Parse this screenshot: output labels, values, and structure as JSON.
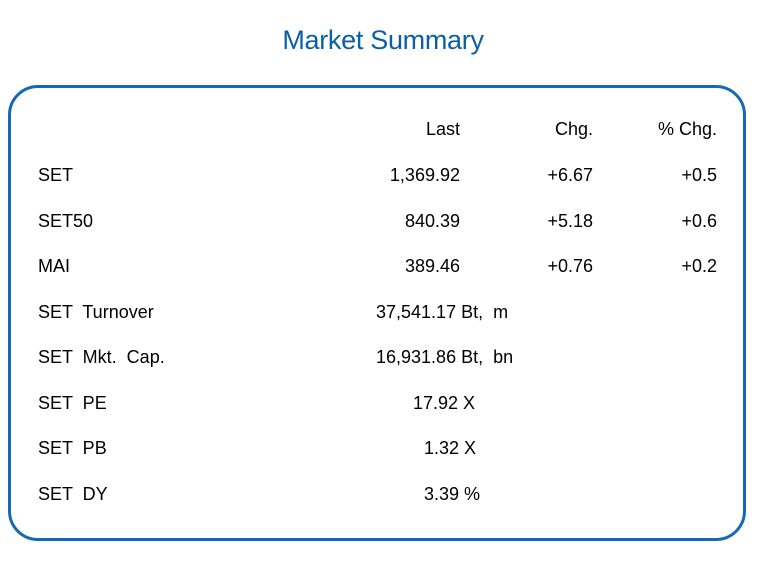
{
  "title": "Market Summary",
  "headers": {
    "last": "Last",
    "chg": "Chg.",
    "pct_chg": "% Chg."
  },
  "indices": [
    {
      "name": "SET",
      "last": "1,369.92",
      "chg": "+6.67",
      "pct_chg": "+0.5"
    },
    {
      "name": "SET50",
      "last": "840.39",
      "chg": "+5.18",
      "pct_chg": "+0.6"
    },
    {
      "name": "MAI",
      "last": "389.46",
      "chg": "+0.76",
      "pct_chg": "+0.2"
    }
  ],
  "stats": [
    {
      "name": "SET  Turnover",
      "value": "37,541.17 Bt,  m"
    },
    {
      "name": "SET  Mkt.  Cap.",
      "value": "16,931.86 Bt,  bn"
    },
    {
      "name": "SET  PE",
      "value": "17.92 X"
    },
    {
      "name": "SET  PB",
      "value": "1.32 X"
    },
    {
      "name": "SET  DY",
      "value": "3.39 %"
    }
  ],
  "colors": {
    "title": "#0a5fa8",
    "border": "#1669b3"
  }
}
